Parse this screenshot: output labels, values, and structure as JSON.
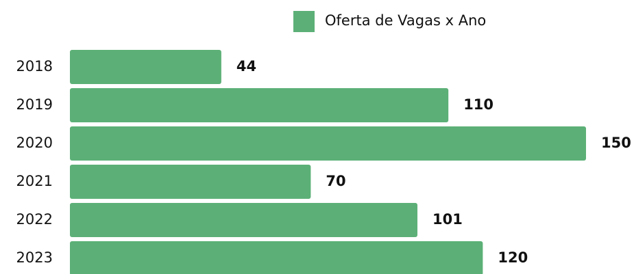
{
  "chart_data": {
    "type": "bar",
    "orientation": "horizontal",
    "categories": [
      "2018",
      "2019",
      "2020",
      "2021",
      "2022",
      "2023"
    ],
    "series": [
      {
        "name": "Oferta de Vagas x Ano",
        "color": "#5cb077",
        "values": [
          44,
          110,
          150,
          70,
          101,
          120
        ]
      }
    ],
    "legend": "top"
  }
}
